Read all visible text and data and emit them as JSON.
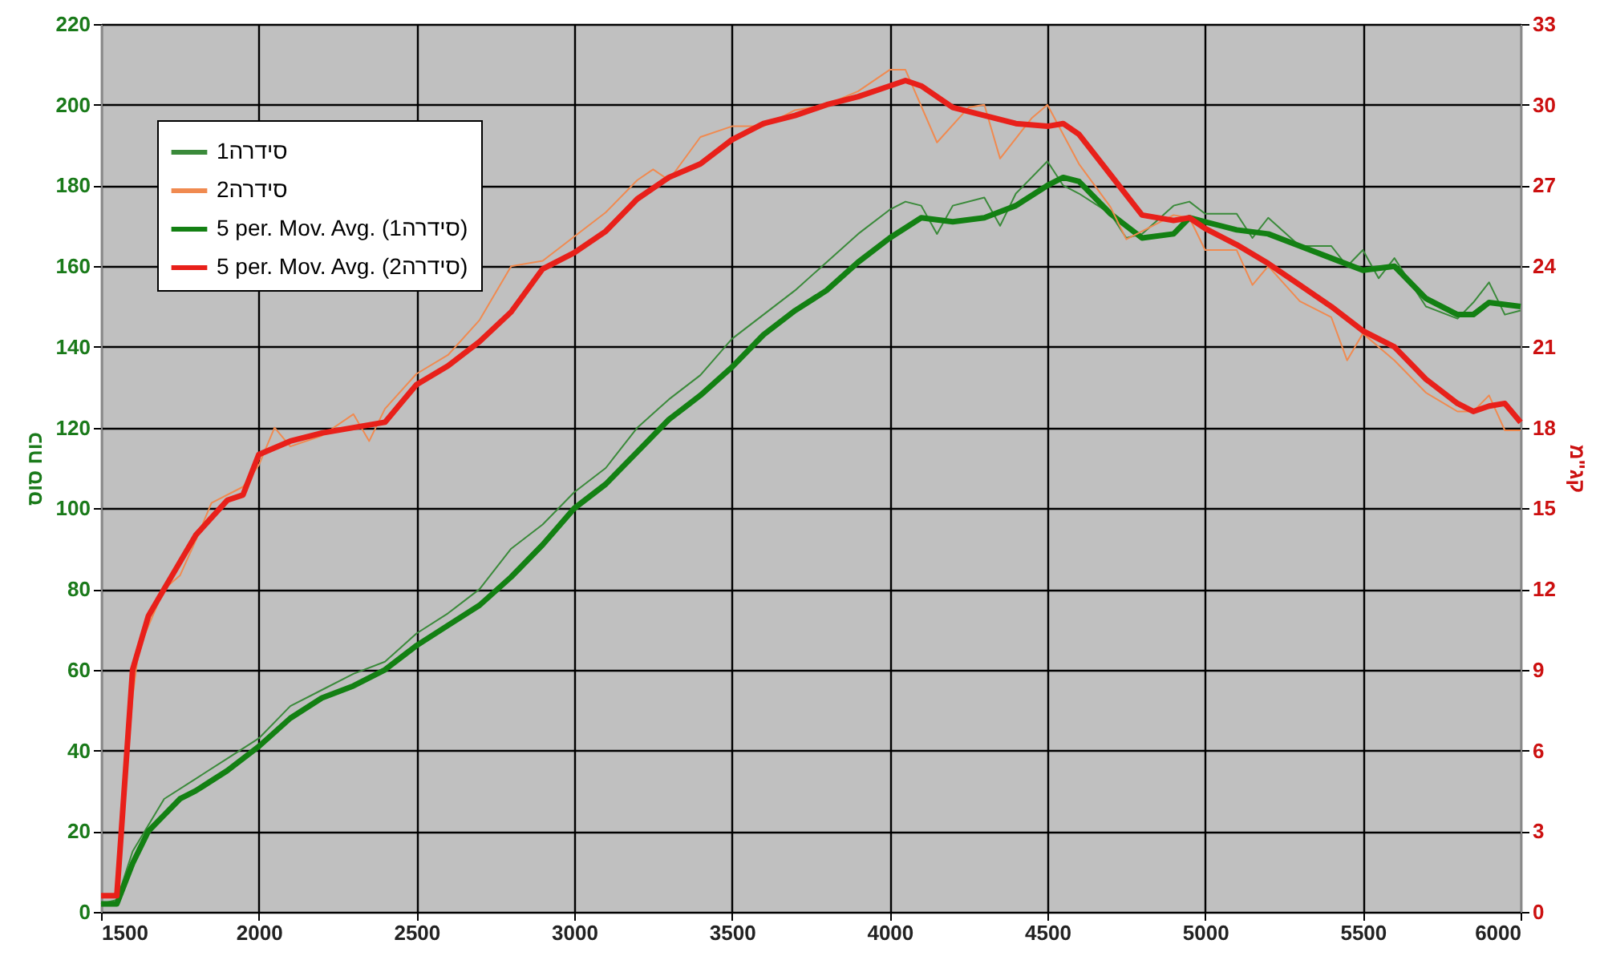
{
  "chart_data": {
    "type": "line",
    "ylabel": "כוח סוס",
    "y2label": "קג\"מ",
    "xlim": [
      1500,
      6000
    ],
    "xticks": [
      1500,
      2000,
      2500,
      3000,
      3500,
      4000,
      4500,
      5000,
      5500,
      6000
    ],
    "ylim": [
      0,
      220
    ],
    "yticks": [
      0,
      20,
      40,
      60,
      80,
      100,
      120,
      140,
      160,
      180,
      200,
      220
    ],
    "y2lim": [
      0,
      33
    ],
    "y2ticks": [
      0,
      3,
      6,
      9,
      12,
      15,
      18,
      21,
      24,
      27,
      30,
      33
    ],
    "grid": true,
    "legend": "top left",
    "marker": "none",
    "series": [
      {
        "name": "סידרה1",
        "color": "#3a8a3a",
        "x": [
          1500,
          1550,
          1600,
          1700,
          1800,
          1900,
          2000,
          2100,
          2200,
          2300,
          2400,
          2500,
          2600,
          2700,
          2800,
          2900,
          3000,
          3100,
          3200,
          3300,
          3400,
          3500,
          3600,
          3700,
          3800,
          3900,
          4000,
          4050,
          4100,
          4150,
          4200,
          4300,
          4350,
          4400,
          4500,
          4550,
          4600,
          4700,
          4750,
          4800,
          4900,
          4950,
          5000,
          5100,
          5150,
          5200,
          5300,
          5400,
          5450,
          5500,
          5550,
          5600,
          5700,
          5800,
          5850,
          5900,
          5950,
          6000
        ],
        "values": [
          2,
          3,
          15,
          28,
          33,
          38,
          43,
          51,
          55,
          59,
          62,
          69,
          74,
          80,
          90,
          96,
          104,
          110,
          120,
          127,
          133,
          142,
          148,
          154,
          161,
          168,
          174,
          176,
          175,
          168,
          175,
          177,
          170,
          178,
          186,
          180,
          178,
          173,
          167,
          168,
          175,
          176,
          173,
          173,
          167,
          172,
          165,
          165,
          160,
          164,
          157,
          162,
          150,
          147,
          151,
          156,
          148,
          149
        ]
      },
      {
        "name": "סידרה2",
        "color": "#f08a50",
        "axis": "y2",
        "x": [
          1550,
          1600,
          1620,
          1700,
          1750,
          1800,
          1850,
          1950,
          2000,
          2050,
          2100,
          2200,
          2300,
          2350,
          2400,
          2500,
          2600,
          2700,
          2800,
          2900,
          3000,
          3100,
          3200,
          3250,
          3300,
          3400,
          3500,
          3600,
          3700,
          3800,
          3900,
          4000,
          4050,
          4150,
          4250,
          4300,
          4350,
          4450,
          4500,
          4550,
          4600,
          4700,
          4750,
          4800,
          4900,
          4950,
          5000,
          5100,
          5150,
          5200,
          5300,
          5400,
          5450,
          5500,
          5600,
          5700,
          5800,
          5850,
          5900,
          5950,
          6000
        ],
        "values": [
          0.6,
          8,
          9.8,
          12,
          12.5,
          13.8,
          15.2,
          15.8,
          16.6,
          18,
          17.3,
          17.7,
          18.5,
          17.5,
          18.7,
          20,
          20.7,
          22,
          24,
          24.2,
          25.1,
          26,
          27.2,
          27.6,
          27.2,
          28.8,
          29.2,
          29.2,
          29.8,
          30,
          30.5,
          31.3,
          31.3,
          28.6,
          29.9,
          30,
          28,
          29.5,
          30,
          28.9,
          27.8,
          26.2,
          25,
          25.3,
          25.9,
          25.8,
          24.6,
          24.6,
          23.3,
          24,
          22.7,
          22.1,
          20.5,
          21.5,
          20.5,
          19.3,
          18.6,
          18.6,
          19.2,
          17.9,
          17.9
        ]
      },
      {
        "name": "5 per. Mov. Avg. (סידרה1)",
        "type": "line",
        "color": "#138013",
        "x": [
          1500,
          1550,
          1600,
          1650,
          1700,
          1750,
          1800,
          1900,
          2000,
          2100,
          2200,
          2300,
          2400,
          2500,
          2600,
          2700,
          2800,
          2900,
          3000,
          3100,
          3200,
          3300,
          3400,
          3500,
          3600,
          3700,
          3800,
          3900,
          4000,
          4100,
          4200,
          4300,
          4400,
          4500,
          4550,
          4600,
          4700,
          4800,
          4900,
          4950,
          5000,
          5100,
          5200,
          5300,
          5400,
          5500,
          5600,
          5700,
          5800,
          5850,
          5900,
          6000
        ],
        "values": [
          2,
          2,
          12,
          20,
          24,
          28,
          30,
          35,
          41,
          48,
          53,
          56,
          60,
          66,
          71,
          76,
          83,
          91,
          100,
          106,
          114,
          122,
          128,
          135,
          143,
          149,
          154,
          161,
          167,
          172,
          171,
          172,
          175,
          180,
          182,
          181,
          173,
          167,
          168,
          172,
          171,
          169,
          168,
          165,
          162,
          159,
          160,
          152,
          148,
          148,
          151,
          150
        ]
      },
      {
        "name": "5 per. Mov. Avg. (סידרה2)",
        "type": "line",
        "color": "#e8201a",
        "axis": "y2",
        "x": [
          1500,
          1550,
          1600,
          1650,
          1700,
          1800,
          1900,
          1950,
          2000,
          2100,
          2200,
          2300,
          2400,
          2500,
          2600,
          2700,
          2800,
          2900,
          3000,
          3100,
          3200,
          3300,
          3400,
          3500,
          3600,
          3700,
          3800,
          3900,
          4000,
          4050,
          4100,
          4200,
          4300,
          4400,
          4500,
          4550,
          4600,
          4700,
          4800,
          4900,
          4950,
          5000,
          5100,
          5200,
          5300,
          5400,
          5500,
          5600,
          5700,
          5800,
          5850,
          5900,
          5950,
          6000
        ],
        "values": [
          0.6,
          0.6,
          9,
          11,
          12,
          14,
          15.3,
          15.5,
          17,
          17.5,
          17.8,
          18,
          18.2,
          19.6,
          20.3,
          21.2,
          22.3,
          23.9,
          24.5,
          25.3,
          26.5,
          27.3,
          27.8,
          28.7,
          29.3,
          29.6,
          30,
          30.3,
          30.7,
          30.9,
          30.7,
          29.9,
          29.6,
          29.3,
          29.2,
          29.3,
          28.9,
          27.4,
          25.9,
          25.7,
          25.8,
          25.4,
          24.8,
          24.1,
          23.3,
          22.5,
          21.6,
          21,
          19.8,
          18.9,
          18.6,
          18.8,
          18.9,
          18.2
        ]
      }
    ]
  }
}
